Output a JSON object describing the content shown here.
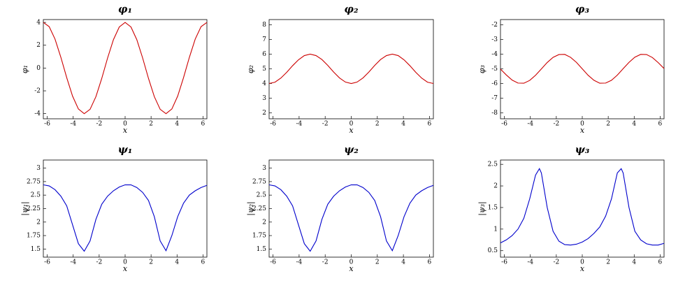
{
  "chart_data": [
    {
      "type": "line",
      "title": "φ₁",
      "x_label": "x",
      "y_label": "φ₁",
      "xlim": [
        -6.3,
        6.3
      ],
      "ylim": [
        -4.45,
        4.25
      ],
      "xticks": [
        -6,
        -4,
        -2,
        0,
        2,
        4,
        6
      ],
      "yticks": [
        -4,
        -2,
        0,
        2,
        4
      ],
      "x": [
        -6.3,
        -5.85,
        -5.4,
        -4.95,
        -4.5,
        -4.05,
        -3.6,
        -3.15,
        -2.7,
        -2.25,
        -1.8,
        -1.35,
        -0.9,
        -0.45,
        0,
        0.45,
        0.9,
        1.35,
        1.8,
        2.25,
        2.7,
        3.15,
        3.6,
        4.05,
        4.5,
        4.95,
        5.4,
        5.85,
        6.3
      ],
      "series": [
        {
          "color": "#cc0000",
          "values": [
            4.0,
            3.63,
            2.54,
            0.94,
            -0.84,
            -2.46,
            -3.59,
            -4.0,
            -3.62,
            -2.51,
            -0.91,
            0.88,
            2.49,
            3.6,
            4.0,
            3.6,
            2.49,
            0.88,
            -0.91,
            -2.51,
            -3.62,
            -4.0,
            -3.59,
            -2.46,
            -0.84,
            0.94,
            2.54,
            3.63,
            4.0
          ]
        }
      ]
    },
    {
      "type": "line",
      "title": "φ₂",
      "x_label": "x",
      "y_label": "φ₂",
      "xlim": [
        -6.3,
        6.3
      ],
      "ylim": [
        1.6,
        8.35
      ],
      "xticks": [
        -6,
        -4,
        -2,
        0,
        2,
        4,
        6
      ],
      "yticks": [
        2,
        3,
        4,
        5,
        6,
        7,
        8
      ],
      "x": [
        -6.3,
        -5.85,
        -5.4,
        -4.95,
        -4.5,
        -4.05,
        -3.6,
        -3.15,
        -2.7,
        -2.25,
        -1.8,
        -1.35,
        -0.9,
        -0.45,
        0,
        0.45,
        0.9,
        1.35,
        1.8,
        2.25,
        2.7,
        3.15,
        3.6,
        4.05,
        4.5,
        4.95,
        5.4,
        5.85,
        6.3
      ],
      "series": [
        {
          "color": "#cc0000",
          "values": [
            4.0,
            4.09,
            4.37,
            4.76,
            5.21,
            5.61,
            5.9,
            6.0,
            5.9,
            5.63,
            5.23,
            4.78,
            4.38,
            4.1,
            4.0,
            4.1,
            4.38,
            4.78,
            5.23,
            5.63,
            5.9,
            6.0,
            5.9,
            5.61,
            5.21,
            4.76,
            4.37,
            4.09,
            4.0
          ]
        }
      ]
    },
    {
      "type": "line",
      "title": "φ₃",
      "x_label": "x",
      "y_label": "φ₃",
      "xlim": [
        -6.3,
        6.3
      ],
      "ylim": [
        -8.4,
        -1.65
      ],
      "xticks": [
        -6,
        -4,
        -2,
        0,
        2,
        4,
        6
      ],
      "yticks": [
        -8,
        -7,
        -6,
        -5,
        -4,
        -3,
        -2
      ],
      "x": [
        -6.3,
        -5.85,
        -5.4,
        -4.95,
        -4.5,
        -4.05,
        -3.6,
        -3.15,
        -2.7,
        -2.25,
        -1.8,
        -1.35,
        -0.9,
        -0.45,
        0,
        0.45,
        0.9,
        1.35,
        1.8,
        2.25,
        2.7,
        3.15,
        3.6,
        4.05,
        4.5,
        4.95,
        5.4,
        5.85,
        6.3
      ],
      "series": [
        {
          "color": "#cc0000",
          "values": [
            -5.02,
            -5.42,
            -5.77,
            -5.97,
            -5.98,
            -5.79,
            -5.44,
            -5.01,
            -4.57,
            -4.22,
            -4.03,
            -4.02,
            -4.22,
            -4.56,
            -5.0,
            -5.44,
            -5.78,
            -5.98,
            -5.97,
            -5.78,
            -5.43,
            -4.99,
            -4.56,
            -4.21,
            -4.02,
            -4.03,
            -4.23,
            -4.58,
            -4.98
          ]
        }
      ]
    },
    {
      "type": "line",
      "title": "ψ₁",
      "x_label": "x",
      "y_label": "|ψ₁|",
      "xlim": [
        -6.3,
        6.3
      ],
      "ylim": [
        1.35,
        3.15
      ],
      "xticks": [
        -6,
        -4,
        -2,
        0,
        2,
        4,
        6
      ],
      "yticks": [
        1.5,
        1.75,
        2,
        2.25,
        2.5,
        2.75,
        3
      ],
      "x": [
        -6.3,
        -5.85,
        -5.4,
        -4.95,
        -4.5,
        -4.05,
        -3.6,
        -3.15,
        -2.7,
        -2.25,
        -1.8,
        -1.35,
        -0.9,
        -0.45,
        0,
        0.45,
        0.9,
        1.35,
        1.8,
        2.25,
        2.7,
        3.15,
        3.6,
        4.05,
        4.5,
        4.95,
        5.4,
        5.85,
        6.3
      ],
      "series": [
        {
          "color": "#0000cc",
          "values": [
            2.69,
            2.67,
            2.6,
            2.48,
            2.3,
            1.95,
            1.6,
            1.46,
            1.65,
            2.05,
            2.33,
            2.48,
            2.58,
            2.65,
            2.69,
            2.69,
            2.64,
            2.55,
            2.4,
            2.1,
            1.65,
            1.47,
            1.75,
            2.1,
            2.35,
            2.5,
            2.58,
            2.64,
            2.68
          ]
        }
      ]
    },
    {
      "type": "line",
      "title": "ψ₂",
      "x_label": "x",
      "y_label": "|ψ₂|",
      "xlim": [
        -6.3,
        6.3
      ],
      "ylim": [
        1.35,
        3.15
      ],
      "xticks": [
        -6,
        -4,
        -2,
        0,
        2,
        4,
        6
      ],
      "yticks": [
        1.5,
        1.75,
        2,
        2.25,
        2.5,
        2.75,
        3
      ],
      "x": [
        -6.3,
        -5.85,
        -5.4,
        -4.95,
        -4.5,
        -4.05,
        -3.6,
        -3.15,
        -2.7,
        -2.25,
        -1.8,
        -1.35,
        -0.9,
        -0.45,
        0,
        0.45,
        0.9,
        1.35,
        1.8,
        2.25,
        2.7,
        3.15,
        3.6,
        4.05,
        4.5,
        4.95,
        5.4,
        5.85,
        6.3
      ],
      "series": [
        {
          "color": "#0000cc",
          "values": [
            2.69,
            2.67,
            2.6,
            2.48,
            2.3,
            1.95,
            1.6,
            1.46,
            1.65,
            2.05,
            2.33,
            2.48,
            2.58,
            2.65,
            2.69,
            2.69,
            2.64,
            2.55,
            2.4,
            2.1,
            1.65,
            1.47,
            1.75,
            2.1,
            2.35,
            2.5,
            2.58,
            2.64,
            2.68
          ]
        }
      ]
    },
    {
      "type": "line",
      "title": "ψ₃",
      "x_label": "x",
      "y_label": "|ψ₃|",
      "xlim": [
        -6.3,
        6.3
      ],
      "ylim": [
        0.35,
        2.6
      ],
      "xticks": [
        -6,
        -4,
        -2,
        0,
        2,
        4,
        6
      ],
      "yticks": [
        0.5,
        1,
        1.5,
        2,
        2.5
      ],
      "x": [
        -6.3,
        -5.85,
        -5.4,
        -4.95,
        -4.5,
        -4.05,
        -3.6,
        -3.3,
        -3.15,
        -2.7,
        -2.25,
        -1.8,
        -1.35,
        -0.9,
        -0.45,
        0,
        0.45,
        0.9,
        1.35,
        1.8,
        2.25,
        2.7,
        3.0,
        3.15,
        3.6,
        4.05,
        4.5,
        4.95,
        5.4,
        5.85,
        6.3
      ],
      "series": [
        {
          "color": "#0000cc",
          "values": [
            0.68,
            0.75,
            0.85,
            1.0,
            1.25,
            1.7,
            2.25,
            2.4,
            2.3,
            1.5,
            0.95,
            0.72,
            0.64,
            0.63,
            0.65,
            0.7,
            0.78,
            0.9,
            1.05,
            1.3,
            1.7,
            2.3,
            2.4,
            2.3,
            1.5,
            0.95,
            0.75,
            0.66,
            0.63,
            0.63,
            0.67
          ]
        }
      ]
    }
  ]
}
